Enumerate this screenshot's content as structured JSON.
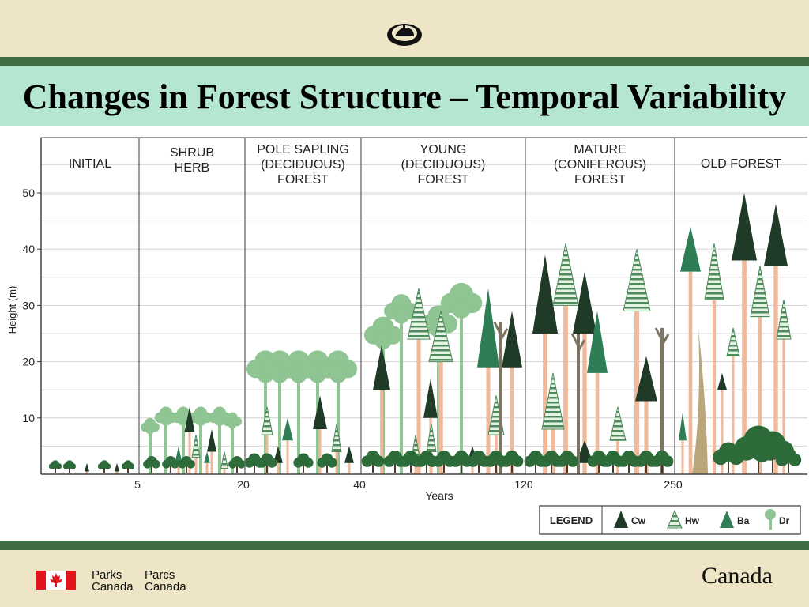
{
  "slide": {
    "title": "Changes in Forest Structure – Temporal Variability"
  },
  "footer": {
    "parks_en_1": "Parks",
    "parks_en_2": "Canada",
    "parks_fr_1": "Parcs",
    "parks_fr_2": "Canada",
    "wordmark": "Canada"
  },
  "diagram": {
    "y_axis_label": "Height (m)",
    "y_ticks": [
      "10",
      "20",
      "30",
      "40",
      "50"
    ],
    "x_axis_label": "Years",
    "x_ticks": [
      "5",
      "20",
      "40",
      "120",
      "250"
    ],
    "stages": [
      {
        "lines": [
          "INITIAL"
        ]
      },
      {
        "lines": [
          "SHRUB",
          "HERB"
        ]
      },
      {
        "lines": [
          "POLE SAPLING",
          "(DECIDUOUS)",
          "FOREST"
        ]
      },
      {
        "lines": [
          "YOUNG",
          "(DECIDUOUS)",
          "FOREST"
        ]
      },
      {
        "lines": [
          "MATURE",
          "(CONIFEROUS)",
          "FOREST"
        ]
      },
      {
        "lines": [
          "OLD FOREST"
        ]
      }
    ],
    "legend": {
      "title": "LEGEND",
      "items": [
        "Cw",
        "Hw",
        "Ba",
        "Dr"
      ]
    },
    "colors": {
      "cw": "#1f3a26",
      "hw_stripe": "#4e8a5c",
      "ba": "#2f7d55",
      "dr": "#8fc493",
      "trunk": "#f0b99b",
      "shrub": "#2e6b3a",
      "snag": "#7d7562"
    }
  }
}
